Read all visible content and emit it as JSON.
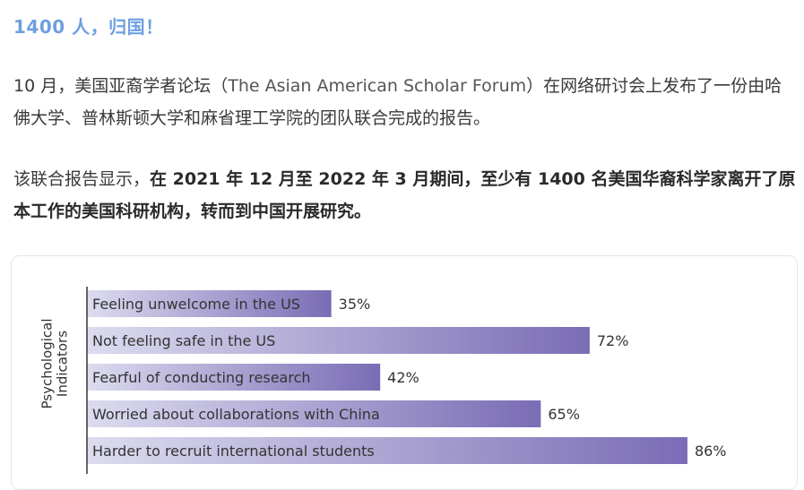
{
  "article": {
    "heading": "1400 人，归国！",
    "p1_prefix": "10 月，美国亚裔学者论坛（",
    "p1_org": "The Asian American Scholar Forum",
    "p1_suffix": "）在网络研讨会上发布了一份由哈佛大学、普林斯顿大学和麻省理工学院的团队联合完成的报告。",
    "p2_prefix": "该联合报告显示，",
    "p2_bold": "在 2021 年 12 月至 2022 年 3 月期间，至少有 1400 名美国华裔科学家离开了原本工作的美国科研机构，转而到中国开展研究。"
  },
  "chart_data": {
    "type": "bar",
    "orientation": "horizontal",
    "ylabel": "Psychological Indicators",
    "categories": [
      "Feeling unwelcome in the US",
      "Not feeling safe in the US",
      "Fearful of conducting research",
      "Worried about collaborations with China",
      "Harder to recruit international students"
    ],
    "values": [
      35,
      72,
      42,
      65,
      86
    ],
    "value_labels": [
      "35%",
      "72%",
      "42%",
      "65%",
      "86%"
    ],
    "xlim": [
      0,
      100
    ],
    "grid": false,
    "colors": {
      "light": "#dcdcef",
      "dark": "#7a6cb5",
      "text": "#333333"
    }
  }
}
